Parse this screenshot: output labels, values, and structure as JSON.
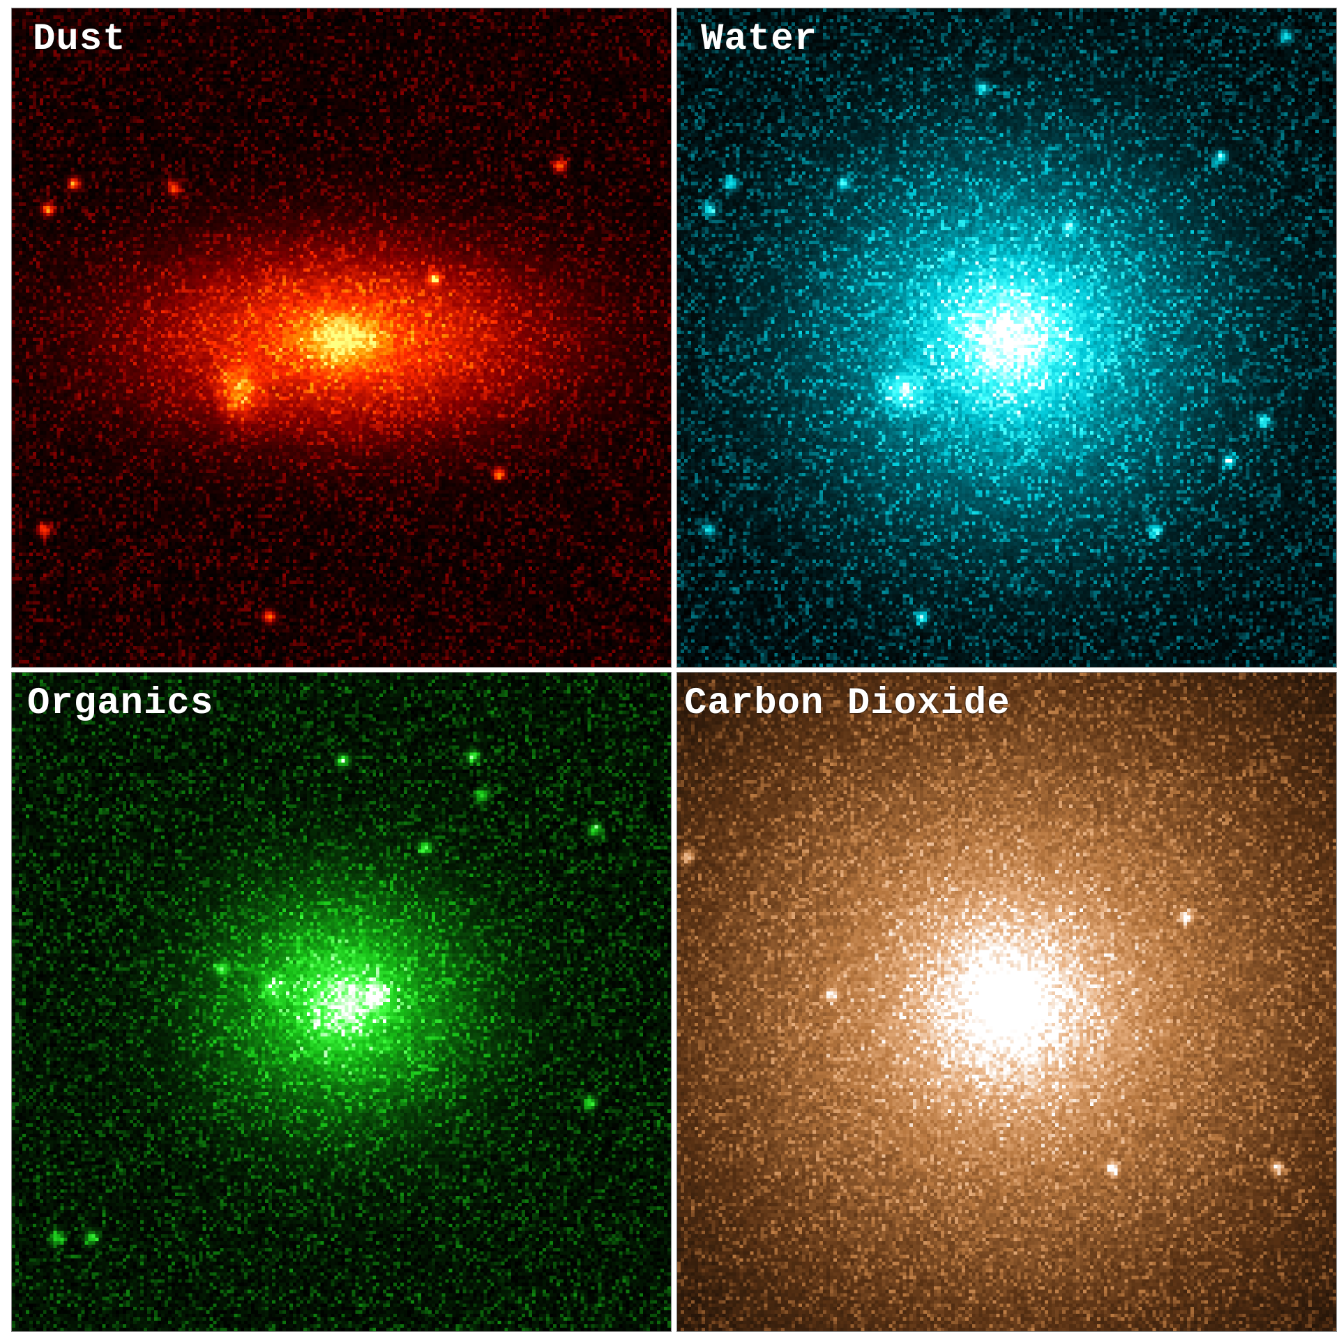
{
  "panels": [
    {
      "label": "Dust",
      "colormap": [
        "#000000",
        "#8b0000",
        "#ff2a00",
        "#ff9a00",
        "#ffff80"
      ]
    },
    {
      "label": "Water",
      "colormap": [
        "#000000",
        "#005a66",
        "#00c8d8",
        "#40ffff",
        "#ffffff"
      ]
    },
    {
      "label": "Organics",
      "colormap": [
        "#000000",
        "#0a5a0a",
        "#18c018",
        "#40ff40",
        "#ffffff"
      ]
    },
    {
      "label": "Carbon Dioxide",
      "colormap": [
        "#000000",
        "#5a3214",
        "#b87840",
        "#e8b080",
        "#ffffff"
      ]
    }
  ]
}
